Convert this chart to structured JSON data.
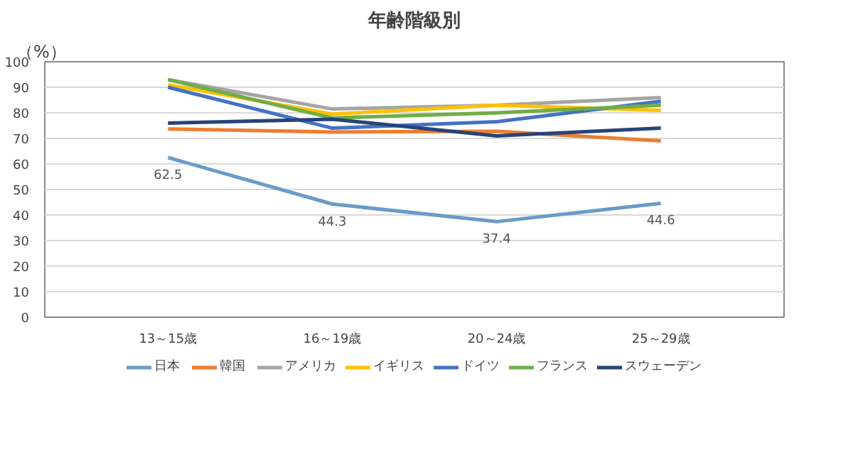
{
  "chart_data": {
    "type": "line",
    "title": "年齢階級別",
    "ylabel": "（%）",
    "categories": [
      "13～15歳",
      "16～19歳",
      "20～24歳",
      "25～29歳"
    ],
    "ylim": [
      0,
      100
    ],
    "yticks": [
      0,
      10,
      20,
      30,
      40,
      50,
      60,
      70,
      80,
      90,
      100
    ],
    "grid": "y",
    "legend": "bottom",
    "marker": "none",
    "line_style": "solid",
    "series": [
      {
        "name": "日本",
        "color": "#6a9bc8",
        "values": [
          62.5,
          44.3,
          37.4,
          44.6
        ],
        "value_labels": [
          "62.5",
          "44.3",
          "37.4",
          "44.6"
        ]
      },
      {
        "name": "韓国",
        "color": "#ed7d31",
        "values": [
          73.7,
          72.5,
          72.8,
          69
        ]
      },
      {
        "name": "アメリカ",
        "color": "#a5a5a5",
        "values": [
          93,
          81.5,
          83,
          86
        ]
      },
      {
        "name": "イギリス",
        "color": "#ffc000",
        "values": [
          91,
          79.5,
          83,
          81
        ]
      },
      {
        "name": "ドイツ",
        "color": "#4472c4",
        "values": [
          90,
          74,
          76.5,
          84.5
        ]
      },
      {
        "name": "フランス",
        "color": "#70ad47",
        "values": [
          93,
          78,
          80,
          83
        ]
      },
      {
        "name": "スウェーデン",
        "color": "#264478",
        "values": [
          76,
          77.5,
          71,
          74
        ]
      }
    ]
  }
}
